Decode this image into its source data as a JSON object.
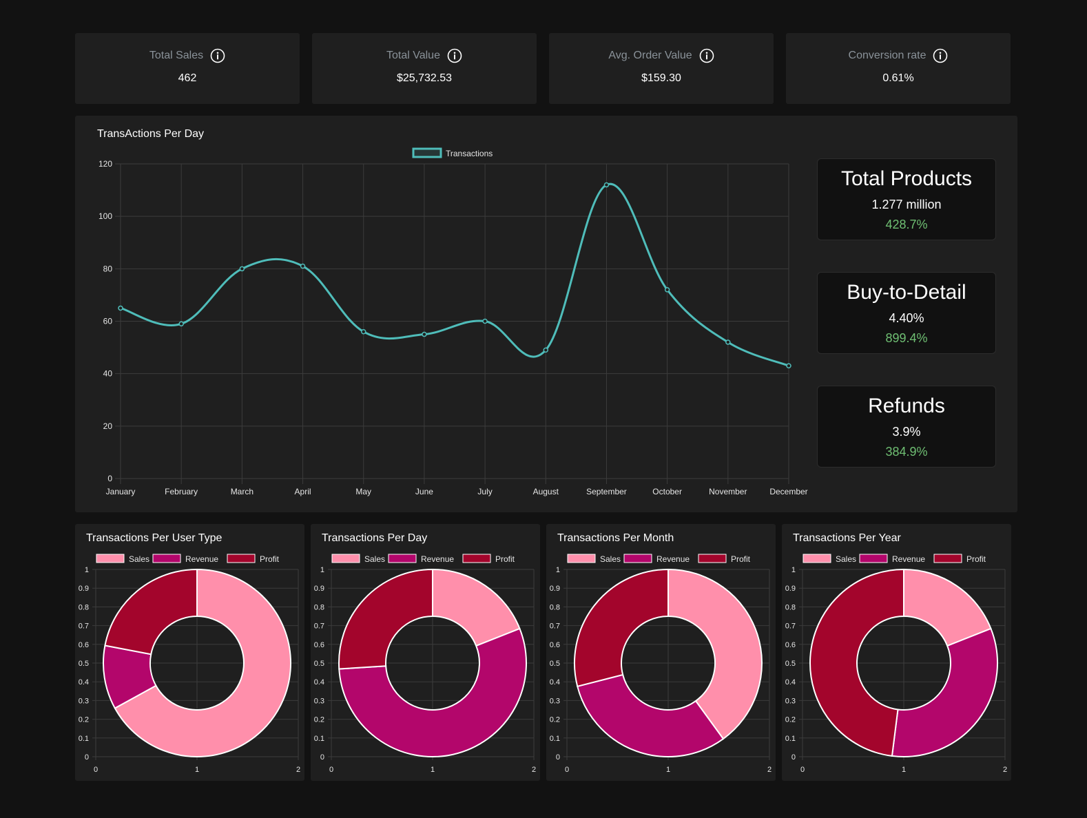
{
  "kpis": [
    {
      "label": "Total Sales",
      "value": "462",
      "icon": "info-icon"
    },
    {
      "label": "Total Value",
      "value": "$25,732.53",
      "icon": "info-icon"
    },
    {
      "label": "Avg. Order Value",
      "value": "$159.30",
      "icon": "info-icon"
    },
    {
      "label": "Conversion rate",
      "value": "0.61%",
      "icon": "info-icon"
    }
  ],
  "stats": [
    {
      "title": "Total Products",
      "value": "1.277 million",
      "change": "428.7%"
    },
    {
      "title": "Buy-to-Detail",
      "value": "4.40%",
      "change": "899.4%"
    },
    {
      "title": "Refunds",
      "value": "3.9%",
      "change": "384.9%"
    }
  ],
  "colors": {
    "line": "#4fbdba",
    "sales": "#ff8fab",
    "revenue": "#b3066b",
    "profit": "#a3052c",
    "positive": "#6fbf73"
  },
  "chart_data": [
    {
      "type": "line",
      "title": "TransActions Per Day",
      "categories": [
        "January",
        "February",
        "March",
        "April",
        "May",
        "June",
        "July",
        "August",
        "September",
        "October",
        "November",
        "December"
      ],
      "series": [
        {
          "name": "Transactions",
          "values": [
            65,
            59,
            80,
            81,
            56,
            55,
            60,
            49,
            112,
            72,
            52,
            43
          ]
        }
      ],
      "ylim": [
        0,
        120
      ],
      "yticks": [
        0,
        20,
        40,
        60,
        80,
        100,
        120
      ],
      "grid": true,
      "legend": "top-center"
    },
    {
      "type": "pie",
      "title": "Transactions Per User Type",
      "categories": [
        "Sales",
        "Revenue",
        "Profit"
      ],
      "values": [
        67,
        11,
        22
      ],
      "xticks": [
        0,
        1,
        2
      ],
      "yticks": [
        0,
        0.1,
        0.2,
        0.3,
        0.4,
        0.5,
        0.6,
        0.7,
        0.8,
        0.9,
        1
      ],
      "legend": "top"
    },
    {
      "type": "pie",
      "title": "Transactions Per Day",
      "categories": [
        "Sales",
        "Revenue",
        "Profit"
      ],
      "values": [
        19,
        55,
        26
      ],
      "xticks": [
        0,
        1,
        2
      ],
      "yticks": [
        0,
        0.1,
        0.2,
        0.3,
        0.4,
        0.5,
        0.6,
        0.7,
        0.8,
        0.9,
        1
      ],
      "legend": "top"
    },
    {
      "type": "pie",
      "title": "Transactions Per Month",
      "categories": [
        "Sales",
        "Revenue",
        "Profit"
      ],
      "values": [
        40,
        31,
        29
      ],
      "xticks": [
        0,
        1,
        2
      ],
      "yticks": [
        0,
        0.1,
        0.2,
        0.3,
        0.4,
        0.5,
        0.6,
        0.7,
        0.8,
        0.9,
        1
      ],
      "legend": "top"
    },
    {
      "type": "pie",
      "title": "Transactions Per Year",
      "categories": [
        "Sales",
        "Revenue",
        "Profit"
      ],
      "values": [
        19,
        33,
        48
      ],
      "xticks": [
        0,
        1,
        2
      ],
      "yticks": [
        0,
        0.1,
        0.2,
        0.3,
        0.4,
        0.5,
        0.6,
        0.7,
        0.8,
        0.9,
        1
      ],
      "legend": "top"
    }
  ]
}
